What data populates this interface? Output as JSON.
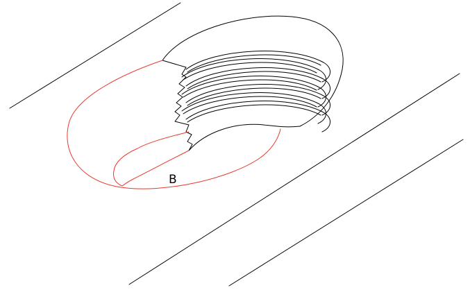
{
  "drawing": {
    "label": "B",
    "colors": {
      "edge": "#000000",
      "highlight": "#e8392b",
      "background": "#ffffff"
    }
  }
}
